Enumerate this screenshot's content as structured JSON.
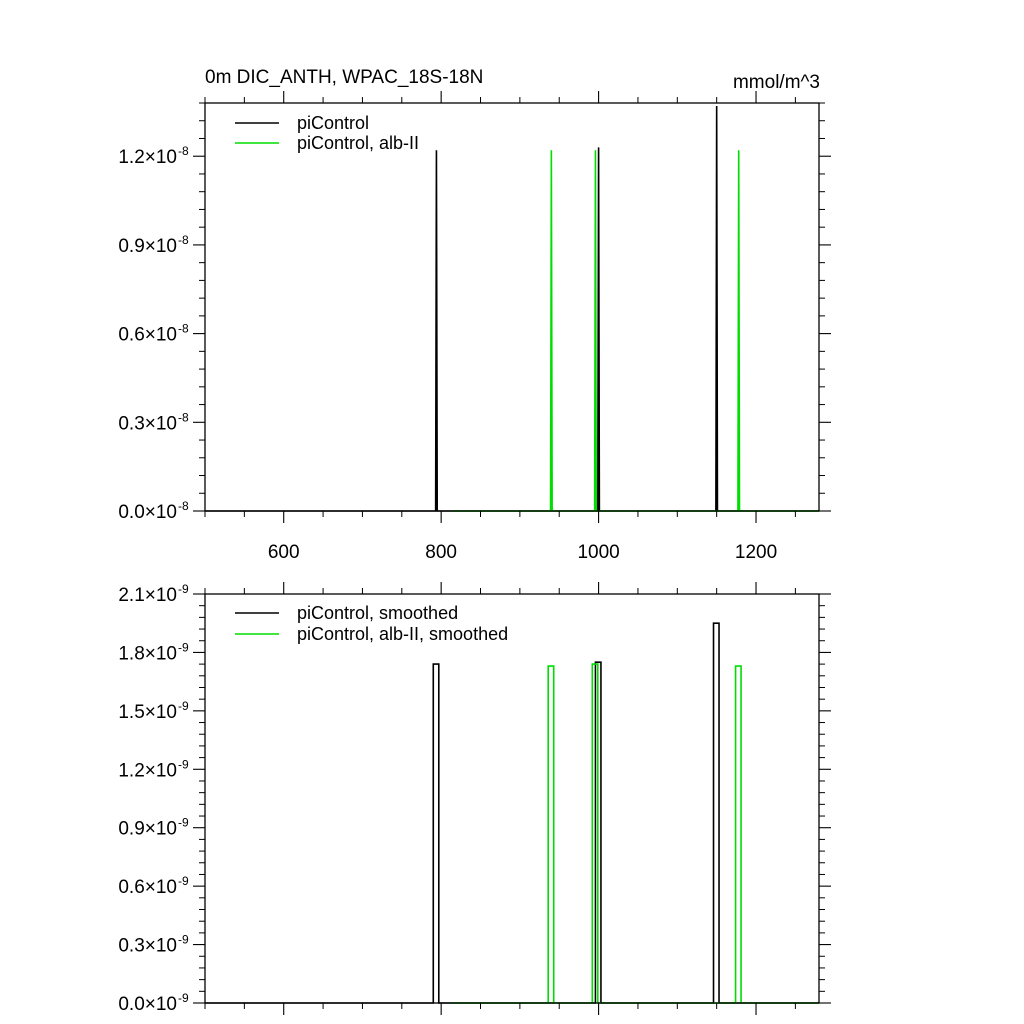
{
  "figure": {
    "title_left": "0m DIC_ANTH, WPAC_18S-18N",
    "title_right": "mmol/m^3"
  },
  "colors": {
    "black": "#000000",
    "green": "#00dd00"
  },
  "chart_data": [
    {
      "type": "line",
      "xlim": [
        500,
        1280
      ],
      "ylim": [
        0,
        1.38e-08
      ],
      "x_ticks": [
        600,
        800,
        1000,
        1200
      ],
      "x_ticklabels": [
        "600",
        "800",
        "1000",
        "1200"
      ],
      "y_ticks": [
        0,
        3e-09,
        6e-09,
        9e-09,
        1.2e-08
      ],
      "y_ticklabels": [
        {
          "mantissa": "0.0",
          "exponent": "-8"
        },
        {
          "mantissa": "0.3",
          "exponent": "-8"
        },
        {
          "mantissa": "0.6",
          "exponent": "-8"
        },
        {
          "mantissa": "0.9",
          "exponent": "-8"
        },
        {
          "mantissa": "1.2",
          "exponent": "-8"
        }
      ],
      "series": [
        {
          "name": "piControl",
          "color": "#000000",
          "x": [
            500,
            793,
            794,
            795,
            999,
            1000,
            1001,
            1149,
            1150,
            1151,
            1280
          ],
          "y": [
            0,
            0,
            1.22e-08,
            0,
            0,
            1.23e-08,
            0,
            0,
            1.37e-08,
            0,
            0
          ]
        },
        {
          "name": "piControl, alb-II",
          "color": "#00dd00",
          "x": [
            813,
            939,
            940,
            941,
            995,
            996,
            997,
            1177,
            1178,
            1179,
            1280
          ],
          "y": [
            0,
            0,
            1.22e-08,
            0,
            0,
            1.22e-08,
            0,
            0,
            1.22e-08,
            0,
            0
          ]
        }
      ]
    },
    {
      "type": "line",
      "xlim": [
        500,
        1280
      ],
      "ylim": [
        0,
        2.1e-09
      ],
      "x_ticks": [
        600,
        800,
        1000,
        1200
      ],
      "x_ticklabels": [],
      "y_ticks": [
        0,
        3e-10,
        6e-10,
        9e-10,
        1.2e-09,
        1.5e-09,
        1.8e-09,
        2.1e-09
      ],
      "y_ticklabels": [
        {
          "mantissa": "0.0",
          "exponent": "-9"
        },
        {
          "mantissa": "0.3",
          "exponent": "-9"
        },
        {
          "mantissa": "0.6",
          "exponent": "-9"
        },
        {
          "mantissa": "0.9",
          "exponent": "-9"
        },
        {
          "mantissa": "1.2",
          "exponent": "-9"
        },
        {
          "mantissa": "1.5",
          "exponent": "-9"
        },
        {
          "mantissa": "1.8",
          "exponent": "-9"
        },
        {
          "mantissa": "2.1",
          "exponent": "-9"
        }
      ],
      "series": [
        {
          "name": "piControl, smoothed",
          "color": "#000000",
          "x": [
            500,
            790,
            790,
            797,
            797,
            996,
            996,
            1003,
            1003,
            1146,
            1146,
            1153,
            1153,
            1280
          ],
          "y": [
            0,
            0,
            1.74e-09,
            1.74e-09,
            0,
            0,
            1.75e-09,
            1.75e-09,
            0,
            0,
            1.95e-09,
            1.95e-09,
            0,
            0
          ]
        },
        {
          "name": "piControl, alb-II, smoothed",
          "color": "#00dd00",
          "x": [
            813,
            936,
            936,
            943,
            943,
            992,
            992,
            999,
            999,
            1174,
            1174,
            1181,
            1181,
            1280
          ],
          "y": [
            0,
            0,
            1.73e-09,
            1.73e-09,
            0,
            0,
            1.74e-09,
            1.74e-09,
            0,
            0,
            1.73e-09,
            1.73e-09,
            0,
            0
          ]
        }
      ]
    }
  ]
}
